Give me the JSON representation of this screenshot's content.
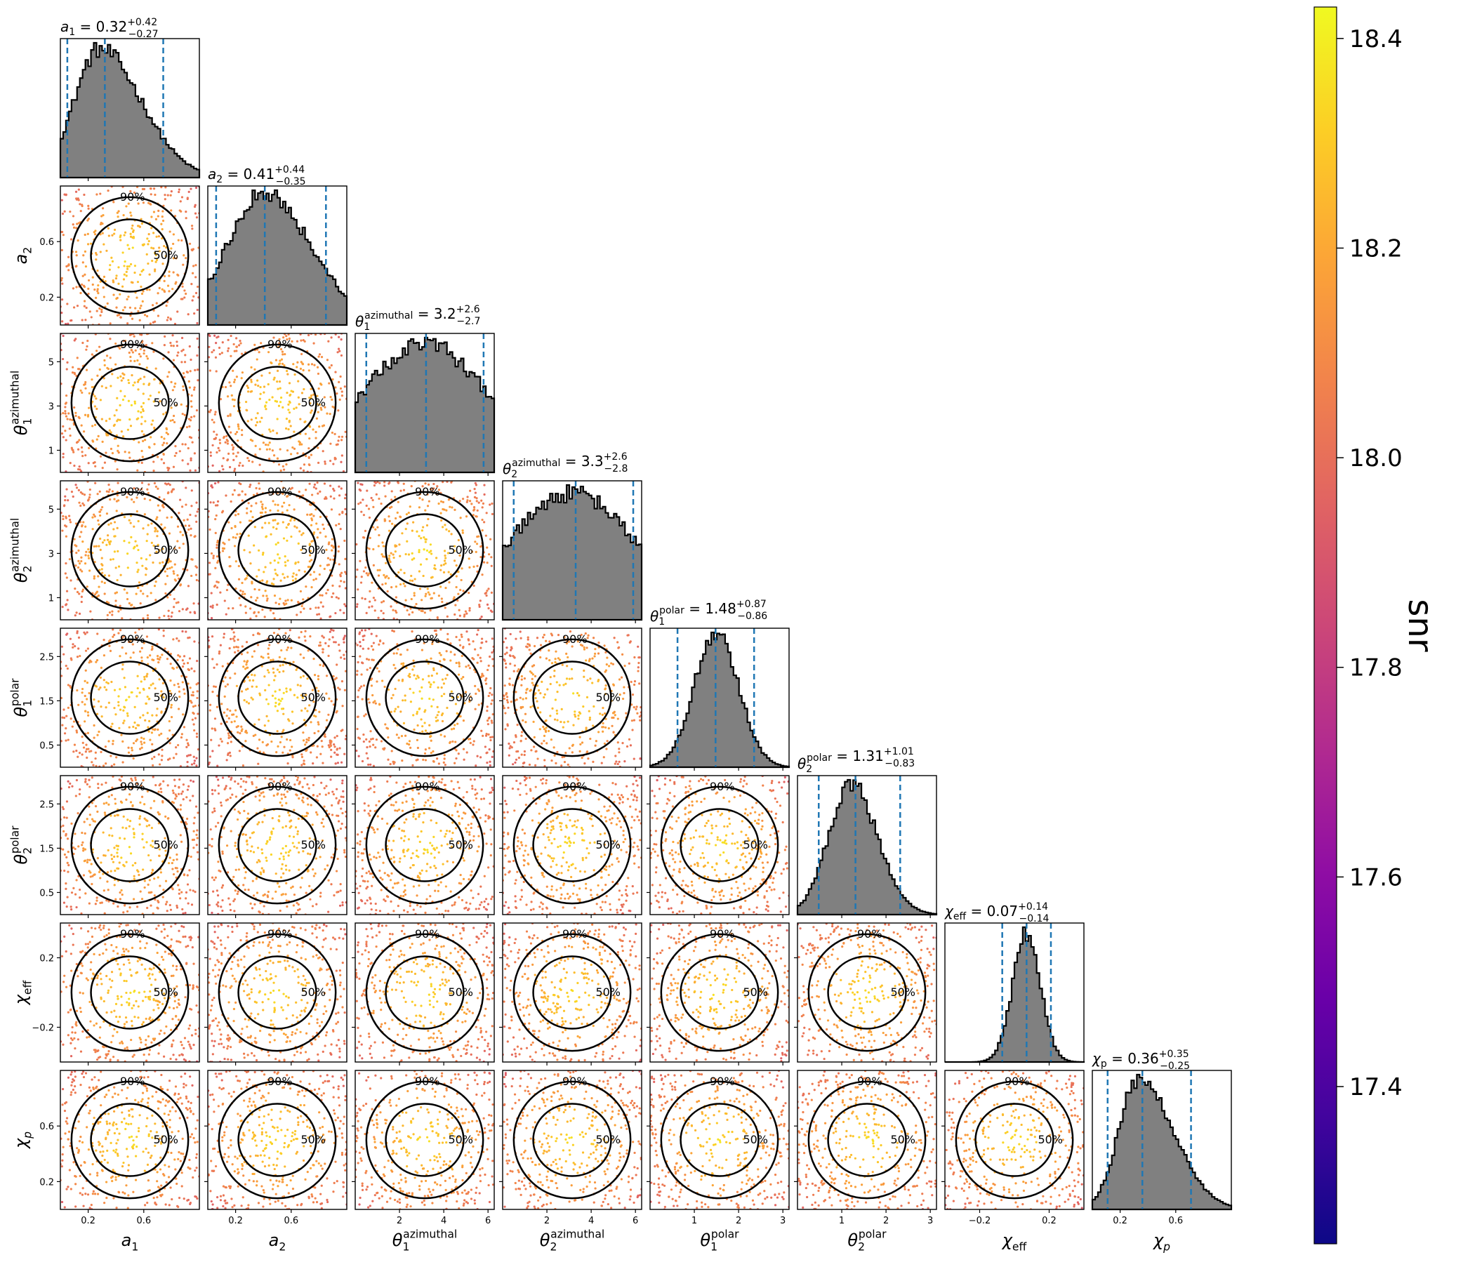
{
  "chart_data": {
    "type": "corner",
    "parameters": [
      {
        "key": "a1",
        "label": "a",
        "sub": "1",
        "sup": "",
        "range": [
          0,
          1
        ],
        "ticks": [
          0.2,
          0.6
        ],
        "tick_labels": [
          "0.2",
          "0.6"
        ],
        "median": 0.32,
        "plus": "+0.42",
        "minus": "−0.27",
        "median_text": "0.32",
        "lo": 0.05,
        "hi": 0.74,
        "dist": {
          "kind": "skew",
          "mode": 0.28,
          "sl": 0.18,
          "sr": 0.3
        }
      },
      {
        "key": "a2",
        "label": "a",
        "sub": "2",
        "sup": "",
        "range": [
          0,
          1
        ],
        "ticks": [
          0.2,
          0.6
        ],
        "tick_labels": [
          "0.2",
          "0.6"
        ],
        "median": 0.41,
        "plus": "+0.44",
        "minus": "−0.35",
        "median_text": "0.41",
        "lo": 0.06,
        "hi": 0.85,
        "dist": {
          "kind": "skew",
          "mode": 0.4,
          "sl": 0.26,
          "sr": 0.34
        }
      },
      {
        "key": "th1az",
        "label": "θ",
        "sub": "1",
        "sup": "azimuthal",
        "range": [
          0,
          6.28
        ],
        "ticks": [
          2,
          4,
          6
        ],
        "tick_labels": [
          "2",
          "4",
          "6"
        ],
        "median": 3.2,
        "plus": "+2.6",
        "minus": "−2.7",
        "median_text": "3.2",
        "lo": 0.5,
        "hi": 5.8,
        "dist": {
          "kind": "flat",
          "mode": 3.2,
          "sl": 3.5,
          "sr": 3.5
        }
      },
      {
        "key": "th2az",
        "label": "θ",
        "sub": "2",
        "sup": "azimuthal",
        "range": [
          0,
          6.28
        ],
        "ticks": [
          2,
          4,
          6
        ],
        "tick_labels": [
          "2",
          "4",
          "6"
        ],
        "median": 3.3,
        "plus": "+2.6",
        "minus": "−2.8",
        "median_text": "3.3",
        "lo": 0.5,
        "hi": 5.9,
        "dist": {
          "kind": "flat",
          "mode": 3.7,
          "sl": 3.3,
          "sr": 3.3
        }
      },
      {
        "key": "th1pol",
        "label": "θ",
        "sub": "1",
        "sup": "polar",
        "range": [
          0,
          3.14
        ],
        "ticks": [
          1,
          2,
          3
        ],
        "tick_labels": [
          "1",
          "2",
          "3"
        ],
        "median": 1.48,
        "plus": "+0.87",
        "minus": "−0.86",
        "median_text": "1.48",
        "lo": 0.62,
        "hi": 2.35,
        "dist": {
          "kind": "skew",
          "mode": 1.5,
          "sl": 0.5,
          "sr": 0.5
        }
      },
      {
        "key": "th2pol",
        "label": "θ",
        "sub": "2",
        "sup": "polar",
        "range": [
          0,
          3.14
        ],
        "ticks": [
          1,
          2,
          3
        ],
        "tick_labels": [
          "1",
          "2",
          "3"
        ],
        "median": 1.31,
        "plus": "+1.01",
        "minus": "−0.83",
        "median_text": "1.31",
        "lo": 0.48,
        "hi": 2.32,
        "dist": {
          "kind": "skew",
          "mode": 1.2,
          "sl": 0.5,
          "sr": 0.6
        }
      },
      {
        "key": "chieff",
        "label": "χ",
        "sub": "eff",
        "sup": "",
        "range": [
          -0.4,
          0.4
        ],
        "ticks": [
          -0.2,
          0.2
        ],
        "tick_labels": [
          "−0.2",
          "0.2"
        ],
        "median": 0.07,
        "plus": "+0.14",
        "minus": "−0.14",
        "median_text": "0.07",
        "lo": -0.07,
        "hi": 0.21,
        "dist": {
          "kind": "skew",
          "mode": 0.07,
          "sl": 0.08,
          "sr": 0.08
        }
      },
      {
        "key": "chip",
        "label": "χ",
        "sub": "p",
        "sup": "",
        "range": [
          0,
          1
        ],
        "ticks": [
          0.2,
          0.6
        ],
        "tick_labels": [
          "0.2",
          "0.6"
        ],
        "median": 0.36,
        "plus": "+0.35",
        "minus": "−0.25",
        "median_text": "0.36",
        "lo": 0.11,
        "hi": 0.71,
        "dist": {
          "kind": "skew",
          "mode": 0.33,
          "sl": 0.14,
          "sr": 0.25
        }
      }
    ],
    "y_ticks": {
      "a2": {
        "ticks": [
          0.2,
          0.6
        ],
        "labels": [
          "0.2",
          "0.6"
        ]
      },
      "th1az": {
        "ticks": [
          1,
          3,
          5
        ],
        "labels": [
          "1",
          "3",
          "5"
        ]
      },
      "th2az": {
        "ticks": [
          1,
          3,
          5
        ],
        "labels": [
          "1",
          "3",
          "5"
        ]
      },
      "th1pol": {
        "ticks": [
          0.5,
          1.5,
          2.5
        ],
        "labels": [
          "0.5",
          "1.5",
          "2.5"
        ]
      },
      "th2pol": {
        "ticks": [
          0.5,
          1.5,
          2.5
        ],
        "labels": [
          "0.5",
          "1.5",
          "2.5"
        ]
      },
      "chieff": {
        "ticks": [
          -0.2,
          0.2
        ],
        "labels": [
          "−0.2",
          "0.2"
        ]
      },
      "chip": {
        "ticks": [
          0.2,
          0.6
        ],
        "labels": [
          "0.2",
          "0.6"
        ]
      }
    },
    "contour_levels": [
      "50%",
      "90%"
    ],
    "colorbar": {
      "label": "snr",
      "cmap": "plasma",
      "range": [
        17.25,
        18.43
      ],
      "ticks": [
        17.4,
        17.6,
        17.8,
        18.0,
        18.2,
        18.4
      ],
      "tick_labels": [
        "17.4",
        "17.6",
        "17.8",
        "18.0",
        "18.2",
        "18.4"
      ]
    },
    "hist_color": "#808080",
    "quantile_color": "#1f77b4"
  }
}
